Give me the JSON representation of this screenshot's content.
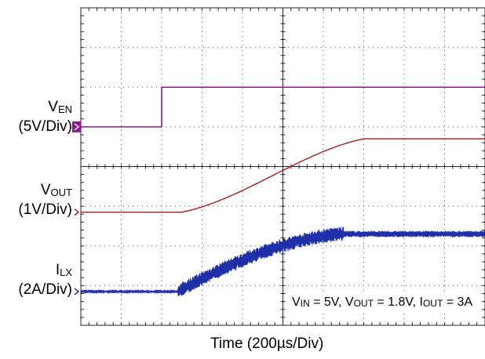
{
  "chart_data": {
    "type": "line",
    "xlabel": "Time (200µs/Div)",
    "annotation": {
      "vin_sym": "V",
      "vin_sub": "IN",
      "vin_val": " = 5V, ",
      "vout_sym": "V",
      "vout_sub": "OUT",
      "vout_val": " = 1.8V, ",
      "iout_sym": "I",
      "iout_sub": "OUT",
      "iout_val": " = 3A"
    },
    "divisions": {
      "x": 10,
      "y": 8
    },
    "series": [
      {
        "name_symbol": "V",
        "name_sub": "EN",
        "scale": "(5V/Div)",
        "color": "#8B1A8B",
        "shape": "step",
        "baseline_div": 5.0,
        "high_div": 6.0,
        "step_at_div": 2.0
      },
      {
        "name_symbol": "V",
        "name_sub": "OUT",
        "scale": "(1V/Div)",
        "color": "#9E1F1F",
        "shape": "ramp",
        "baseline_div": 2.85,
        "final_div": 4.7,
        "ramp_start_div": 2.5,
        "ramp_end_div": 7.0
      },
      {
        "name_symbol": "I",
        "name_sub": "LX",
        "scale": "(2A/Div)",
        "color": "#1F2FA8",
        "shape": "ramp-noisy",
        "baseline_div": 0.85,
        "final_div": 2.3,
        "ramp_start_div": 2.4,
        "ramp_end_div": 6.5
      }
    ]
  }
}
